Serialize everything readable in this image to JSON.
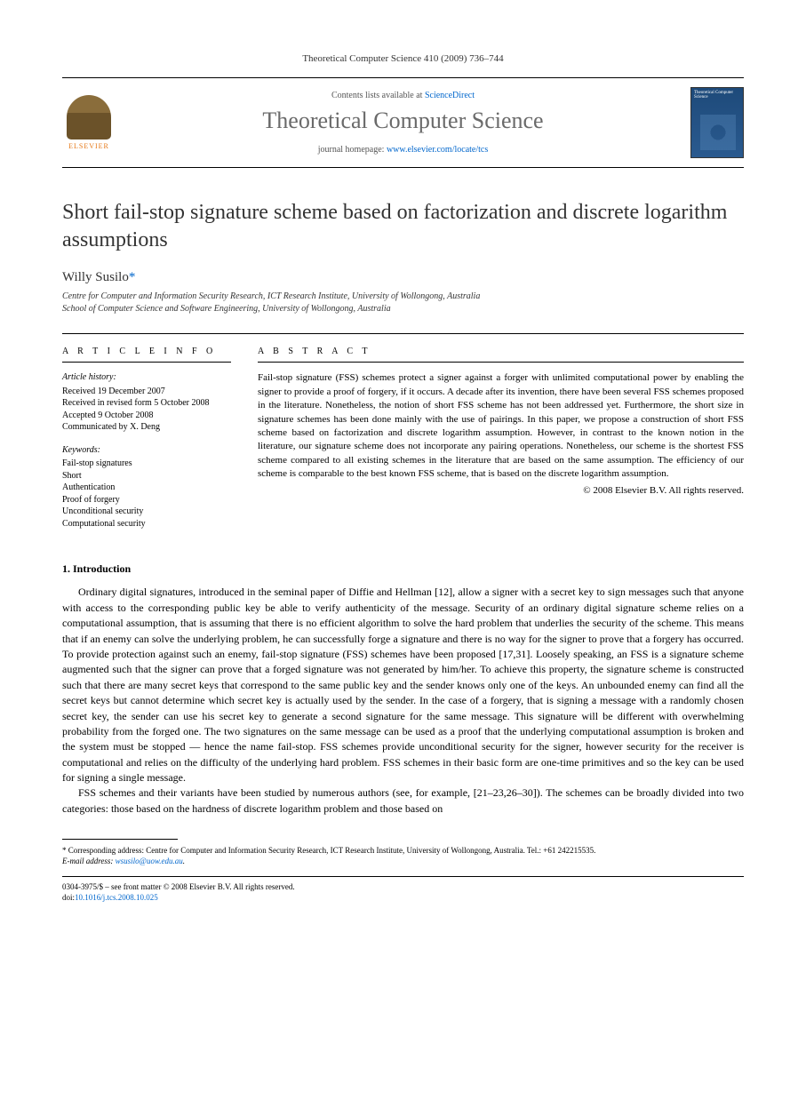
{
  "header": {
    "citation": "Theoretical Computer Science 410 (2009) 736–744"
  },
  "masthead": {
    "publisher_name": "ELSEVIER",
    "contents_prefix": "Contents lists available at ",
    "contents_link": "ScienceDirect",
    "journal_name": "Theoretical Computer Science",
    "homepage_prefix": "journal homepage: ",
    "homepage_link": "www.elsevier.com/locate/tcs",
    "cover_label": "Theoretical Computer Science"
  },
  "article": {
    "title": "Short fail-stop signature scheme based on factorization and discrete logarithm assumptions",
    "author": "Willy Susilo",
    "author_marker": "*",
    "affiliations": [
      "Centre for Computer and Information Security Research, ICT Research Institute, University of Wollongong, Australia",
      "School of Computer Science and Software Engineering, University of Wollongong, Australia"
    ]
  },
  "article_info": {
    "heading": "A R T I C L E   I N F O",
    "history_label": "Article history:",
    "history": [
      "Received 19 December 2007",
      "Received in revised form 5 October 2008",
      "Accepted 9 October 2008",
      "Communicated by X. Deng"
    ],
    "keywords_label": "Keywords:",
    "keywords": [
      "Fail-stop signatures",
      "Short",
      "Authentication",
      "Proof of forgery",
      "Unconditional security",
      "Computational security"
    ]
  },
  "abstract": {
    "heading": "A B S T R A C T",
    "text": "Fail-stop signature (FSS) schemes protect a signer against a forger with unlimited computational power by enabling the signer to provide a proof of forgery, if it occurs. A decade after its invention, there have been several FSS schemes proposed in the literature. Nonetheless, the notion of short FSS scheme has not been addressed yet. Furthermore, the short size in signature schemes has been done mainly with the use of pairings. In this paper, we propose a construction of short FSS scheme based on factorization and discrete logarithm assumption. However, in contrast to the known notion in the literature, our signature scheme does not incorporate any pairing operations. Nonetheless, our scheme is the shortest FSS scheme compared to all existing schemes in the literature that are based on the same assumption. The efficiency of our scheme is comparable to the best known FSS scheme, that is based on the discrete logarithm assumption.",
    "copyright": "© 2008 Elsevier B.V. All rights reserved."
  },
  "sections": {
    "intro_heading": "1.  Introduction",
    "intro_p1": "Ordinary digital signatures, introduced in the seminal paper of Diffie and Hellman [12], allow a signer with a secret key to sign messages such that anyone with access to the corresponding public key be able to verify authenticity of the message. Security of an ordinary digital signature scheme relies on a computational assumption, that is assuming that there is no efficient algorithm to solve the hard problem that underlies the security of the scheme. This means that if an enemy can solve the underlying problem, he can successfully forge a signature and there is no way for the signer to prove that a forgery has occurred. To provide protection against such an enemy, fail-stop signature (FSS) schemes have been proposed [17,31]. Loosely speaking, an FSS is a signature scheme augmented such that the signer can prove that a forged signature was not generated by him/her. To achieve this property, the signature scheme is constructed such that there are many secret keys that correspond to the same public key and the sender knows only one of the keys. An unbounded enemy can find all the secret keys but cannot determine which secret key is actually used by the sender. In the case of a forgery, that is signing a message with a randomly chosen secret key, the sender can use his secret key to generate a second signature for the same message. This signature will be different with overwhelming probability from the forged one. The two signatures on the same message can be used as a proof that the underlying computational assumption is broken and the system must be stopped — hence the name fail-stop. FSS schemes provide unconditional security for the signer, however security for the receiver is computational and relies on the difficulty of the underlying hard problem. FSS schemes in their basic form are one-time primitives and so the key can be used for signing a single message.",
    "intro_p2": "FSS schemes and their variants have been studied by numerous authors (see, for example, [21–23,26–30]). The schemes can be broadly divided into two categories: those based on the hardness of discrete logarithm problem and those based on"
  },
  "footnotes": {
    "corresponding_marker": "*",
    "corresponding_text": "Corresponding address: Centre for Computer and Information Security Research, ICT Research Institute, University of Wollongong, Australia. Tel.: +61 242215535.",
    "email_label": "E-mail address:",
    "email": "wsusilo@uow.edu.au",
    "email_suffix": "."
  },
  "footer": {
    "issn_line": "0304-3975/$ – see front matter © 2008 Elsevier B.V. All rights reserved.",
    "doi_prefix": "doi:",
    "doi": "10.1016/j.tcs.2008.10.025"
  }
}
